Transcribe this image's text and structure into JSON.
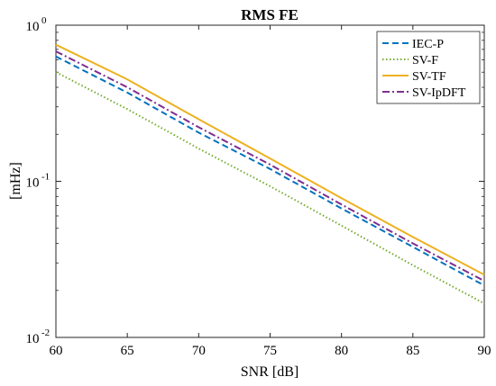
{
  "chart_data": {
    "type": "line",
    "title": "RMS FE",
    "xlabel": "SNR [dB]",
    "ylabel": "[mHz]",
    "xlim": [
      60,
      90
    ],
    "ylim": [
      0.01,
      1
    ],
    "yscale": "log",
    "xticks": [
      60,
      65,
      70,
      75,
      80,
      85,
      90
    ],
    "xtick_labels": [
      "60",
      "65",
      "70",
      "75",
      "80",
      "85",
      "90"
    ],
    "yticks": [
      0.01,
      0.1,
      1
    ],
    "ytick_labels": [
      {
        "base": "10",
        "exp": "-2"
      },
      {
        "base": "10",
        "exp": "-1"
      },
      {
        "base": "10",
        "exp": "0"
      }
    ],
    "legend_position": "top-right",
    "grid": false,
    "x": [
      60,
      65,
      70,
      75,
      80,
      85,
      90
    ],
    "series": [
      {
        "name": "IEC-P",
        "color": "#0072BD",
        "dash": "dashed",
        "values": [
          0.63,
          0.37,
          0.205,
          0.12,
          0.067,
          0.038,
          0.0215
        ]
      },
      {
        "name": "SV-F",
        "color": "#77AC30",
        "dash": "dotted",
        "values": [
          0.5,
          0.29,
          0.162,
          0.093,
          0.052,
          0.029,
          0.0165
        ]
      },
      {
        "name": "SV-TF",
        "color": "#EDB120",
        "dash": "solid",
        "values": [
          0.75,
          0.45,
          0.25,
          0.14,
          0.078,
          0.044,
          0.0252
        ]
      },
      {
        "name": "SV-IpDFT",
        "color": "#7E2F8E",
        "dash": "dashdot",
        "values": [
          0.68,
          0.4,
          0.222,
          0.128,
          0.071,
          0.04,
          0.023
        ]
      }
    ]
  }
}
